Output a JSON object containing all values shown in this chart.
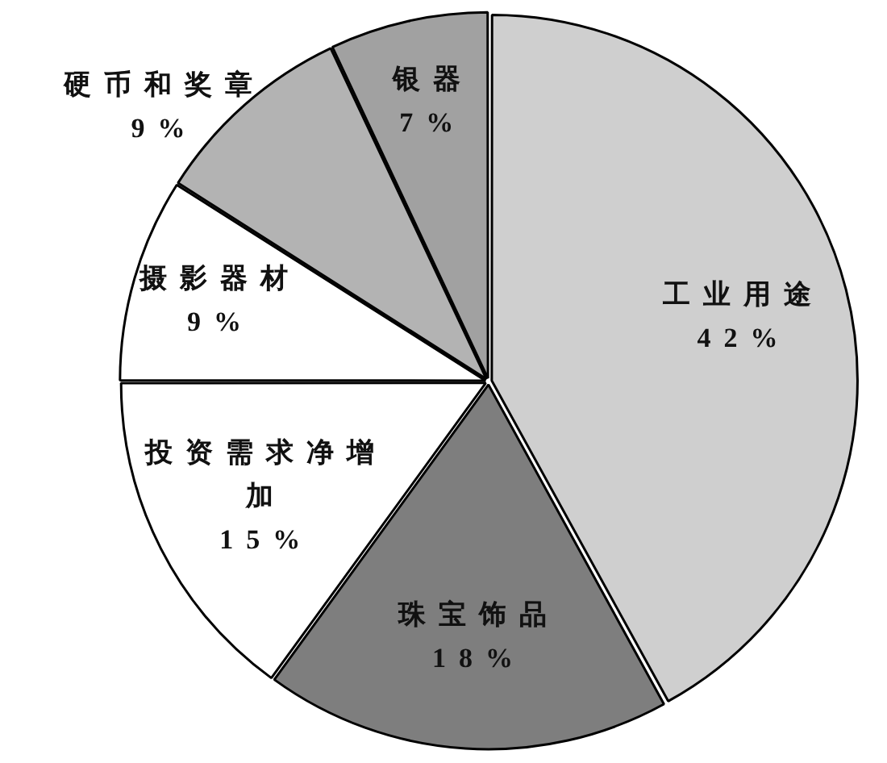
{
  "chart_data": {
    "type": "pie",
    "categories": [
      "工业用途",
      "珠宝饰品",
      "投资需求净增加",
      "摄影器材",
      "硬币和奖章",
      "银器"
    ],
    "values": [
      42,
      18,
      15,
      9,
      9,
      7
    ],
    "colors": [
      "#cfcfcf",
      "#7e7e7e",
      "#ffffff",
      "#ffffff",
      "#b3b3b3",
      "#a1a1a1"
    ],
    "value_labels": [
      "42%",
      "18%",
      "15%",
      "9%",
      "9%",
      "7%"
    ]
  }
}
